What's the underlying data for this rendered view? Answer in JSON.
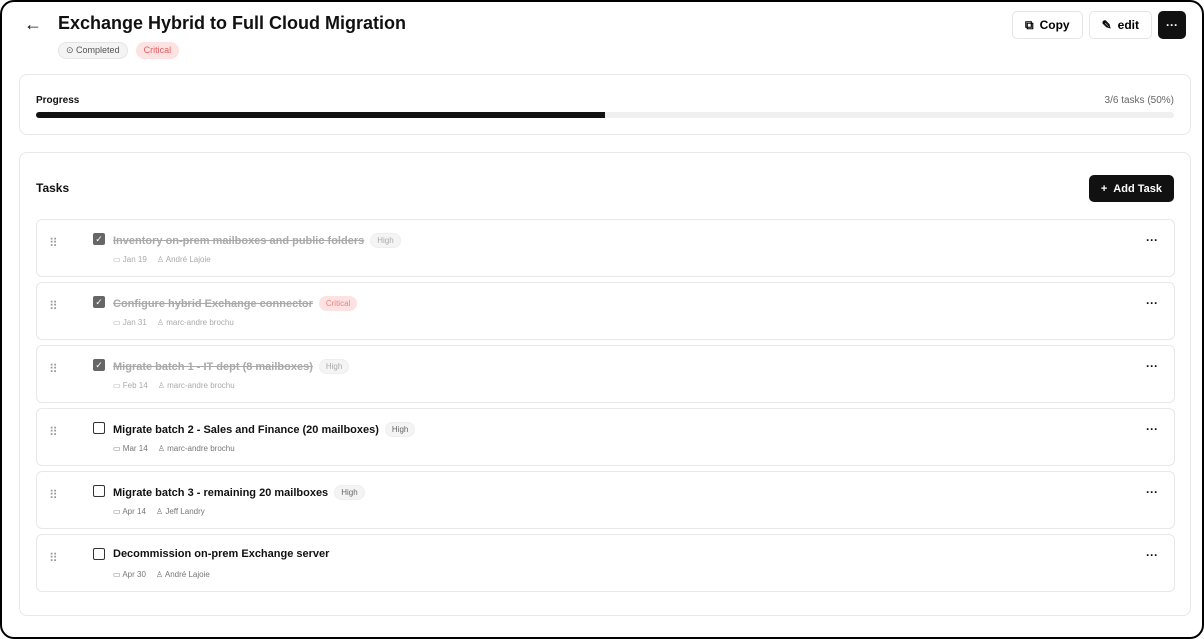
{
  "header": {
    "title": "Exchange Hybrid to Full Cloud Migration",
    "status": "Completed",
    "priority": "Critical",
    "copy_label": "Copy",
    "edit_label": "edit",
    "more_label": "···"
  },
  "progress": {
    "label": "Progress",
    "summary": "3/6 tasks (50%)",
    "percent": 50
  },
  "tasks_section": {
    "title": "Tasks",
    "add_label": "Add Task"
  },
  "tasks": [
    {
      "name": "Inventory on-prem mailboxes and public folders",
      "priority": "High",
      "date": "Jan 19",
      "assignee": "André Lajoie",
      "done": true
    },
    {
      "name": "Configure hybrid Exchange connector",
      "priority": "Critical",
      "date": "Jan 31",
      "assignee": "marc-andre brochu",
      "done": true
    },
    {
      "name": "Migrate batch 1 - IT dept (8 mailboxes)",
      "priority": "High",
      "date": "Feb 14",
      "assignee": "marc-andre brochu",
      "done": true
    },
    {
      "name": "Migrate batch 2 - Sales and Finance (20 mailboxes)",
      "priority": "High",
      "date": "Mar 14",
      "assignee": "marc-andre brochu",
      "done": false
    },
    {
      "name": "Migrate batch 3 - remaining 20 mailboxes",
      "priority": "High",
      "date": "Apr 14",
      "assignee": "Jeff Landry",
      "done": false
    },
    {
      "name": "Decommission on-prem Exchange server",
      "priority": null,
      "date": "Apr 30",
      "assignee": "André Lajoie",
      "done": false
    }
  ],
  "colors": {
    "accent": "#111111",
    "critical_bg": "#fde2e2",
    "critical_text": "#e06060"
  }
}
